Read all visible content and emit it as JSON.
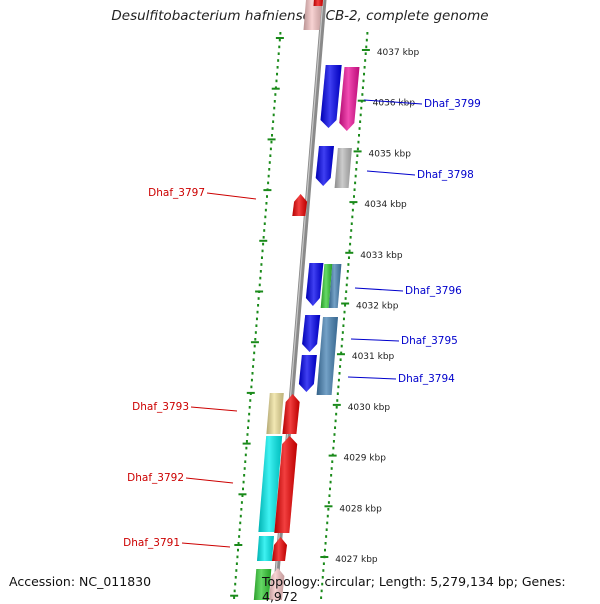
{
  "title": "Desulfitobacterium hafniense DCB-2, complete genome",
  "footer": {
    "accession": "Accession: NC_011830",
    "topology": "Topology: circular; Length: 5,279,134 bp; Genes: 4,972"
  },
  "kbp_ticks": [
    {
      "label": "4037 kbp",
      "kbp": 4037
    },
    {
      "label": "4036 kbp",
      "kbp": 4036
    },
    {
      "label": "4035 kbp",
      "kbp": 4035
    },
    {
      "label": "4034 kbp",
      "kbp": 4034
    },
    {
      "label": "4033 kbp",
      "kbp": 4033
    },
    {
      "label": "4032 kbp",
      "kbp": 4032
    },
    {
      "label": "4031 kbp",
      "kbp": 4031
    },
    {
      "label": "4030 kbp",
      "kbp": 4030
    },
    {
      "label": "4029 kbp",
      "kbp": 4029
    },
    {
      "label": "4028 kbp",
      "kbp": 4028
    },
    {
      "label": "4027 kbp",
      "kbp": 4027
    }
  ],
  "gene_labels": [
    {
      "label": "Dhaf_3799",
      "strand": "forward",
      "color": "#0000cc"
    },
    {
      "label": "Dhaf_3798",
      "strand": "forward",
      "color": "#0000cc"
    },
    {
      "label": "Dhaf_3797",
      "strand": "reverse",
      "color": "#cc0000"
    },
    {
      "label": "Dhaf_3796",
      "strand": "forward",
      "color": "#0000cc"
    },
    {
      "label": "Dhaf_3795",
      "strand": "forward",
      "color": "#0000cc"
    },
    {
      "label": "Dhaf_3794",
      "strand": "forward",
      "color": "#0000cc"
    },
    {
      "label": "Dhaf_3793",
      "strand": "reverse",
      "color": "#cc0000"
    },
    {
      "label": "Dhaf_3792",
      "strand": "reverse",
      "color": "#cc0000"
    },
    {
      "label": "Dhaf_3791",
      "strand": "reverse",
      "color": "#cc0000"
    }
  ],
  "colors": {
    "backbone": "#8a8a8a",
    "tick_dots": "#1a8a1a",
    "forward_label": "#0000cc",
    "reverse_label": "#cc0000",
    "cds_forward": "#0000ee",
    "cds_reverse": "#ee0000",
    "magenta": "#ee1199",
    "grey": "#bbbbbb",
    "green": "#33cc33",
    "steelblue": "#4682b4",
    "khaki": "#eee09a",
    "cyan": "#00eeee",
    "pink": "#f6c4c4"
  }
}
